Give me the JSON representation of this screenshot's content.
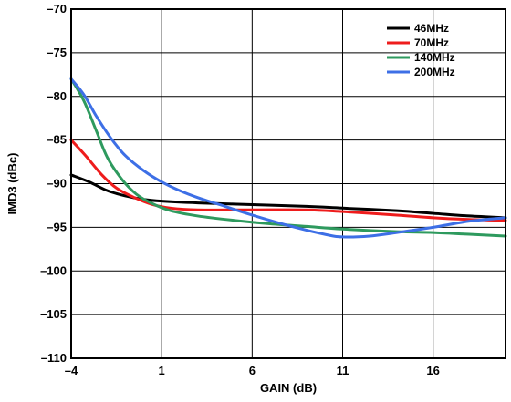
{
  "chart_data": {
    "type": "line",
    "title": "",
    "xlabel": "GAIN (dB)",
    "ylabel": "IMD3 (dBc)",
    "xlim": [
      -4,
      20
    ],
    "ylim": [
      -110,
      -70
    ],
    "x_ticks": [
      -4,
      1,
      6,
      11,
      16
    ],
    "x_tick_labels": [
      "–4",
      "1",
      "6",
      "11",
      "16"
    ],
    "y_ticks": [
      -70,
      -75,
      -80,
      -85,
      -90,
      -95,
      -100,
      -105,
      -110
    ],
    "y_tick_labels": [
      "–70",
      "–75",
      "–80",
      "–85",
      "–90",
      "–95",
      "–100",
      "–105",
      "–110"
    ],
    "grid": true,
    "legend_position": "top-right",
    "series": [
      {
        "name": "46MHz",
        "color": "#000000",
        "points": [
          [
            -4,
            -89
          ],
          [
            -3,
            -89.8
          ],
          [
            -2,
            -90.8
          ],
          [
            -1,
            -91.4
          ],
          [
            0,
            -91.8
          ],
          [
            1,
            -92.0
          ],
          [
            3,
            -92.2
          ],
          [
            6,
            -92.4
          ],
          [
            9,
            -92.6
          ],
          [
            11,
            -92.8
          ],
          [
            14,
            -93.1
          ],
          [
            16,
            -93.4
          ],
          [
            18,
            -93.7
          ],
          [
            20,
            -93.9
          ]
        ]
      },
      {
        "name": "70MHz",
        "color": "#ee1c1c",
        "points": [
          [
            -4,
            -85
          ],
          [
            -3.2,
            -86.8
          ],
          [
            -2.3,
            -89
          ],
          [
            -1.5,
            -90.5
          ],
          [
            -0.5,
            -91.6
          ],
          [
            0.5,
            -92.4
          ],
          [
            1.5,
            -92.8
          ],
          [
            3,
            -93.0
          ],
          [
            6,
            -93.0
          ],
          [
            9,
            -93.0
          ],
          [
            11,
            -93.2
          ],
          [
            14,
            -93.6
          ],
          [
            16,
            -93.9
          ],
          [
            18,
            -94.1
          ],
          [
            20,
            -94.2
          ]
        ]
      },
      {
        "name": "140MHz",
        "color": "#2e9a5e",
        "points": [
          [
            -4,
            -78
          ],
          [
            -3.3,
            -80.5
          ],
          [
            -2.6,
            -84
          ],
          [
            -2,
            -87
          ],
          [
            -1.2,
            -89.5
          ],
          [
            -0.4,
            -91.2
          ],
          [
            0.5,
            -92.3
          ],
          [
            1.5,
            -93.1
          ],
          [
            3,
            -93.7
          ],
          [
            5,
            -94.2
          ],
          [
            7,
            -94.6
          ],
          [
            9,
            -94.9
          ],
          [
            11,
            -95.2
          ],
          [
            14,
            -95.5
          ],
          [
            16,
            -95.6
          ],
          [
            18,
            -95.8
          ],
          [
            20,
            -96.0
          ]
        ]
      },
      {
        "name": "200MHz",
        "color": "#3d6fe6",
        "points": [
          [
            -4,
            -78
          ],
          [
            -3.3,
            -79.8
          ],
          [
            -2.6,
            -82.3
          ],
          [
            -1.8,
            -84.8
          ],
          [
            -1,
            -86.8
          ],
          [
            0,
            -88.5
          ],
          [
            1,
            -89.8
          ],
          [
            2,
            -90.8
          ],
          [
            3,
            -91.6
          ],
          [
            4.5,
            -92.6
          ],
          [
            6,
            -93.6
          ],
          [
            8,
            -94.8
          ],
          [
            10,
            -95.8
          ],
          [
            11,
            -96.1
          ],
          [
            12.5,
            -96.0
          ],
          [
            14,
            -95.6
          ],
          [
            16,
            -95.0
          ],
          [
            18,
            -94.3
          ],
          [
            20,
            -93.9
          ]
        ]
      }
    ]
  }
}
